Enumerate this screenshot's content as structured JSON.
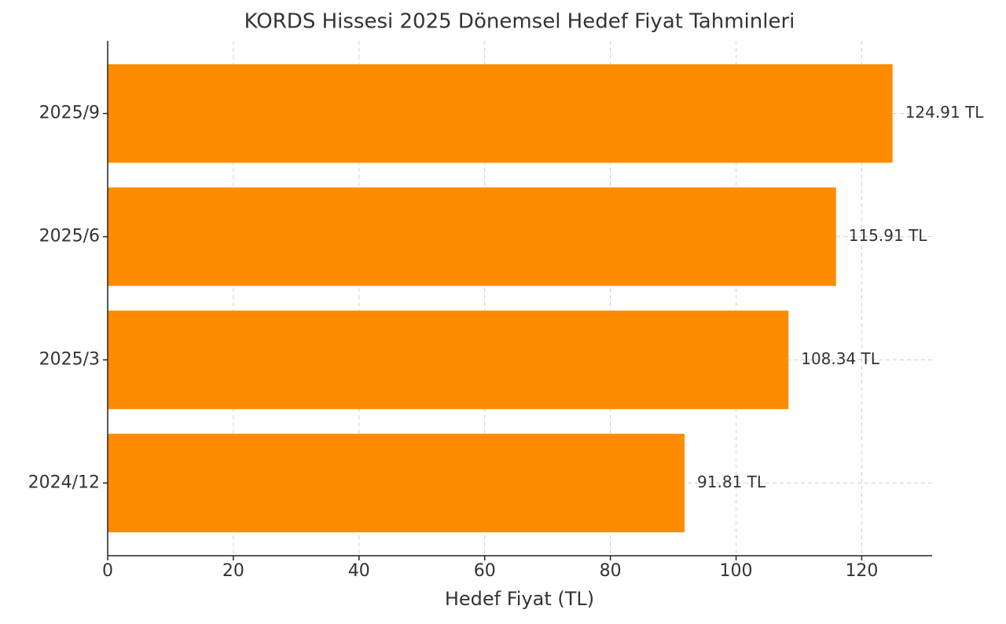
{
  "chart_data": {
    "type": "barh",
    "title": "KORDS Hissesi 2025 Dönemsel Hedef Fiyat Tahminleri",
    "xlabel": "Hedef Fiyat (TL)",
    "categories": [
      "2024/12",
      "2025/3",
      "2025/6",
      "2025/9"
    ],
    "values": [
      91.81,
      108.34,
      115.91,
      124.91
    ],
    "value_labels": [
      "91.81 TL",
      "108.34 TL",
      "115.91 TL",
      "124.91 TL"
    ],
    "color": "#ff8c00",
    "xlim": [
      0,
      131.2
    ],
    "xticks": [
      0,
      20,
      40,
      60,
      80,
      100,
      120
    ],
    "grid": true
  }
}
